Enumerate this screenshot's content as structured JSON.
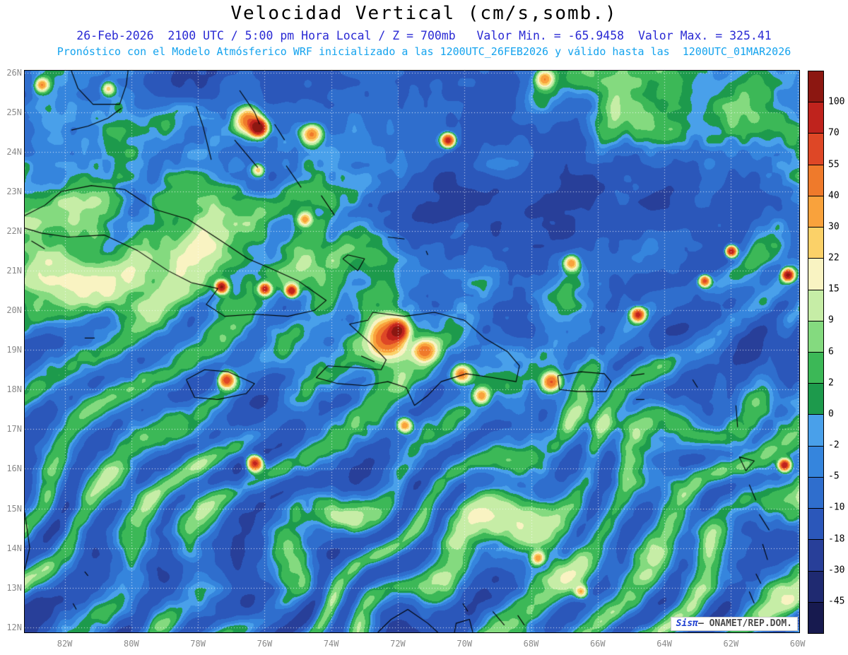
{
  "title": "Velocidad Vertical (cm/s,somb.)",
  "header": {
    "line1": "26-Feb-2026  2100 UTC / 5:00 pm Hora Local / Z = 700mb   Valor Min. = -65.9458  Valor Max. = 325.41",
    "line2": "Pronóstico con el Modelo Atmósferico WRF inicializado a las 1200UTC_26FEB2026 y válido hasta las  1200UTC_01MAR2026"
  },
  "watermark": {
    "brand": "Sisπ",
    "suffix": "– ONAMET/REP.DOM."
  },
  "chart_data": {
    "type": "heatmap",
    "variable": "Velocidad Vertical",
    "units": "cm/s",
    "level": "700mb",
    "valid_time": "26-Feb-2026 2100 UTC / 5:00 pm Hora Local",
    "model": "WRF",
    "initialized": "1200UTC_26FEB2026",
    "valid_until": "1200UTC_01MAR2026",
    "value_min": -65.9458,
    "value_max": 325.41,
    "lat_ticks": [
      "26N",
      "25N",
      "24N",
      "23N",
      "22N",
      "21N",
      "20N",
      "19N",
      "18N",
      "17N",
      "16N",
      "15N",
      "14N",
      "13N",
      "12N"
    ],
    "lon_ticks": [
      "82W",
      "80W",
      "78W",
      "76W",
      "74W",
      "72W",
      "70W",
      "68W",
      "66W",
      "64W",
      "62W",
      "60W"
    ],
    "geo": {
      "lon_min": -83.2,
      "lon_max": -59.95,
      "lat_min": 11.87,
      "lat_max": 26.05
    },
    "colorbar": {
      "levels": [
        -45,
        -30,
        -18,
        -10,
        -5,
        -2,
        0,
        2,
        6,
        9,
        15,
        22,
        30,
        40,
        55,
        70,
        100
      ],
      "colors": [
        "#171a4f",
        "#1f2a71",
        "#283f99",
        "#2b57ba",
        "#2f6ecd",
        "#3585dd",
        "#49a0ea",
        "#1d9a4c",
        "#3cb857",
        "#84da7f",
        "#c6eda6",
        "#f9f3c2",
        "#fbd168",
        "#f9a23c",
        "#ef7a2b",
        "#de4726",
        "#bf231d",
        "#8c1711"
      ]
    },
    "bumps": [
      [
        -82.7,
        25.7,
        45,
        6
      ],
      [
        -80.7,
        25.6,
        30,
        6
      ],
      [
        -78.6,
        25.8,
        -10,
        45
      ],
      [
        -76.5,
        24.8,
        55,
        12
      ],
      [
        -76.2,
        24.62,
        150,
        7
      ],
      [
        -74.6,
        24.45,
        48,
        9
      ],
      [
        -76.2,
        23.55,
        35,
        6
      ],
      [
        -74.8,
        22.3,
        38,
        6
      ],
      [
        -70.5,
        24.3,
        95,
        6
      ],
      [
        -67.6,
        25.85,
        42,
        8
      ],
      [
        -64.3,
        25.2,
        9,
        85
      ],
      [
        -61.3,
        23.9,
        8,
        70
      ],
      [
        -63.4,
        23.0,
        -13,
        75
      ],
      [
        -66.4,
        22.7,
        -10,
        60
      ],
      [
        -61.4,
        22.7,
        -10,
        55
      ],
      [
        -69.6,
        21.6,
        -9,
        60
      ],
      [
        -70.8,
        22.6,
        -8,
        55
      ],
      [
        -80.8,
        25.2,
        7,
        65
      ],
      [
        -81.6,
        21.4,
        9,
        65
      ],
      [
        -78.2,
        21.1,
        8,
        55
      ],
      [
        -77.3,
        20.6,
        110,
        5
      ],
      [
        -76.0,
        20.55,
        85,
        5
      ],
      [
        -75.2,
        20.5,
        100,
        5
      ],
      [
        -74.6,
        20.7,
        7,
        45
      ],
      [
        -72.4,
        19.3,
        9,
        55
      ],
      [
        -72.3,
        19.3,
        55,
        16
      ],
      [
        -72.0,
        19.5,
        95,
        8
      ],
      [
        -71.2,
        19.0,
        45,
        10
      ],
      [
        -70.1,
        18.4,
        55,
        8
      ],
      [
        -67.4,
        18.2,
        60,
        8
      ],
      [
        -66.4,
        18.0,
        7,
        50
      ],
      [
        -77.15,
        18.25,
        75,
        7
      ],
      [
        -76.3,
        16.15,
        95,
        7
      ],
      [
        -62.0,
        21.5,
        105,
        5
      ],
      [
        -62.8,
        20.75,
        70,
        5
      ],
      [
        -60.3,
        20.9,
        115,
        5
      ],
      [
        -60.8,
        20.7,
        7,
        55
      ],
      [
        -64.8,
        19.9,
        85,
        6
      ],
      [
        -66.8,
        21.2,
        45,
        7
      ],
      [
        -61.0,
        19.4,
        -10,
        60
      ],
      [
        -60.4,
        16.1,
        100,
        5
      ],
      [
        -71.8,
        17.1,
        45,
        7
      ],
      [
        -69.5,
        17.85,
        40,
        7
      ],
      [
        -67.8,
        13.75,
        40,
        6
      ],
      [
        -66.5,
        12.9,
        35,
        6
      ],
      [
        -75.5,
        17.3,
        -8,
        50
      ]
    ],
    "coastlines": [
      [
        [
          -83.3,
          22.35
        ],
        [
          -82.6,
          22.65
        ],
        [
          -82.1,
          23.0
        ],
        [
          -81.2,
          23.15
        ],
        [
          -80.2,
          23.05
        ],
        [
          -79.3,
          22.55
        ],
        [
          -78.3,
          22.3
        ],
        [
          -77.3,
          21.75
        ],
        [
          -76.5,
          21.3
        ],
        [
          -75.8,
          21.05
        ],
        [
          -75.0,
          20.75
        ],
        [
          -74.15,
          20.25
        ],
        [
          -74.5,
          20.0
        ],
        [
          -75.3,
          19.85
        ],
        [
          -76.3,
          19.9
        ],
        [
          -77.2,
          19.85
        ],
        [
          -77.75,
          20.15
        ],
        [
          -77.4,
          20.55
        ],
        [
          -78.2,
          20.7
        ],
        [
          -78.9,
          21.0
        ],
        [
          -79.8,
          21.5
        ],
        [
          -80.8,
          21.9
        ],
        [
          -81.9,
          21.85
        ],
        [
          -82.7,
          21.95
        ],
        [
          -83.3,
          22.1
        ]
      ],
      [
        [
          -83.0,
          21.75
        ],
        [
          -82.6,
          21.55
        ]
      ],
      [
        [
          -72.75,
          19.95
        ],
        [
          -71.8,
          19.85
        ],
        [
          -70.9,
          19.95
        ],
        [
          -70.0,
          19.75
        ],
        [
          -69.4,
          19.3
        ],
        [
          -68.7,
          18.95
        ],
        [
          -68.35,
          18.6
        ],
        [
          -68.45,
          18.2
        ],
        [
          -69.15,
          18.3
        ],
        [
          -69.95,
          18.4
        ],
        [
          -70.7,
          18.2
        ],
        [
          -71.1,
          17.85
        ],
        [
          -71.5,
          17.6
        ],
        [
          -71.75,
          18.05
        ],
        [
          -72.3,
          18.2
        ],
        [
          -73.0,
          18.1
        ],
        [
          -73.8,
          18.15
        ],
        [
          -74.45,
          18.3
        ],
        [
          -74.1,
          18.6
        ],
        [
          -73.2,
          18.55
        ],
        [
          -72.5,
          18.5
        ],
        [
          -72.35,
          18.75
        ],
        [
          -72.8,
          19.15
        ],
        [
          -73.45,
          19.65
        ],
        [
          -72.9,
          19.75
        ],
        [
          -72.75,
          19.95
        ]
      ],
      [
        [
          -73.1,
          18.85
        ],
        [
          -72.7,
          18.7
        ]
      ],
      [
        [
          -78.35,
          18.25
        ],
        [
          -77.8,
          18.5
        ],
        [
          -77.1,
          18.45
        ],
        [
          -76.3,
          18.15
        ],
        [
          -76.55,
          17.9
        ],
        [
          -77.4,
          17.75
        ],
        [
          -78.1,
          17.8
        ],
        [
          -78.35,
          18.25
        ]
      ],
      [
        [
          -67.2,
          18.35
        ],
        [
          -66.5,
          18.45
        ],
        [
          -65.8,
          18.4
        ],
        [
          -65.6,
          18.2
        ],
        [
          -65.75,
          17.95
        ],
        [
          -66.6,
          17.95
        ],
        [
          -67.15,
          18.0
        ],
        [
          -67.2,
          18.35
        ]
      ],
      [
        [
          -78.05,
          25.15
        ],
        [
          -77.85,
          24.65
        ],
        [
          -77.6,
          23.8
        ]
      ],
      [
        [
          -76.75,
          25.55
        ],
        [
          -76.3,
          25.0
        ],
        [
          -76.15,
          24.7
        ]
      ],
      [
        [
          -76.9,
          24.3
        ],
        [
          -76.2,
          23.6
        ]
      ],
      [
        [
          -75.7,
          24.7
        ],
        [
          -75.4,
          24.3
        ]
      ],
      [
        [
          -75.35,
          23.65
        ],
        [
          -74.9,
          23.1
        ]
      ],
      [
        [
          -74.3,
          22.9
        ],
        [
          -73.9,
          22.4
        ]
      ],
      [
        [
          -73.65,
          21.3
        ],
        [
          -73.2,
          21.0
        ],
        [
          -73.0,
          21.3
        ],
        [
          -73.5,
          21.4
        ],
        [
          -73.65,
          21.3
        ]
      ],
      [
        [
          -72.3,
          21.85
        ],
        [
          -71.8,
          21.8
        ]
      ],
      [
        [
          -71.15,
          21.5
        ],
        [
          -71.1,
          21.4
        ]
      ],
      [
        [
          -81.8,
          26.05
        ],
        [
          -81.6,
          25.6
        ],
        [
          -81.15,
          25.2
        ],
        [
          -80.35,
          25.2
        ],
        [
          -80.15,
          25.7
        ],
        [
          -80.1,
          26.05
        ]
      ],
      [
        [
          -81.8,
          24.55
        ],
        [
          -81.3,
          24.65
        ],
        [
          -80.7,
          24.85
        ],
        [
          -80.3,
          25.1
        ]
      ],
      [
        [
          -81.4,
          19.3
        ],
        [
          -81.1,
          19.3
        ]
      ],
      [
        [
          -65.0,
          18.35
        ],
        [
          -64.6,
          18.4
        ]
      ],
      [
        [
          -64.85,
          17.75
        ],
        [
          -64.6,
          17.75
        ]
      ],
      [
        [
          -63.15,
          18.25
        ],
        [
          -63.0,
          18.05
        ]
      ],
      [
        [
          -61.85,
          17.6
        ],
        [
          -61.8,
          17.05
        ]
      ],
      [
        [
          -61.75,
          16.3
        ],
        [
          -61.3,
          16.2
        ],
        [
          -61.55,
          15.95
        ],
        [
          -61.75,
          16.3
        ]
      ],
      [
        [
          -61.45,
          15.6
        ],
        [
          -61.25,
          15.2
        ]
      ],
      [
        [
          -61.15,
          14.85
        ],
        [
          -60.85,
          14.45
        ]
      ],
      [
        [
          -61.05,
          14.1
        ],
        [
          -60.9,
          13.7
        ]
      ],
      [
        [
          -61.25,
          13.35
        ],
        [
          -61.1,
          13.1
        ]
      ],
      [
        [
          -61.45,
          12.9
        ],
        [
          -61.3,
          12.6
        ]
      ],
      [
        [
          -61.75,
          12.25
        ],
        [
          -61.6,
          11.95
        ]
      ],
      [
        [
          -70.05,
          12.6
        ],
        [
          -69.9,
          12.4
        ]
      ],
      [
        [
          -69.15,
          12.4
        ],
        [
          -68.8,
          12.05
        ]
      ],
      [
        [
          -68.4,
          12.3
        ],
        [
          -68.2,
          12.05
        ]
      ],
      [
        [
          -72.6,
          11.87
        ],
        [
          -72.2,
          12.2
        ],
        [
          -71.7,
          12.45
        ],
        [
          -71.1,
          12.1
        ],
        [
          -70.8,
          11.87
        ]
      ],
      [
        [
          -70.3,
          11.87
        ],
        [
          -70.25,
          12.1
        ],
        [
          -69.85,
          12.2
        ],
        [
          -69.75,
          11.87
        ]
      ],
      [
        [
          -81.75,
          12.6
        ],
        [
          -81.65,
          12.45
        ]
      ],
      [
        [
          -81.4,
          13.4
        ],
        [
          -81.3,
          13.3
        ]
      ],
      [
        [
          -83.2,
          14.9
        ],
        [
          -83.05,
          14.0
        ],
        [
          -83.3,
          13.1
        ]
      ]
    ]
  }
}
